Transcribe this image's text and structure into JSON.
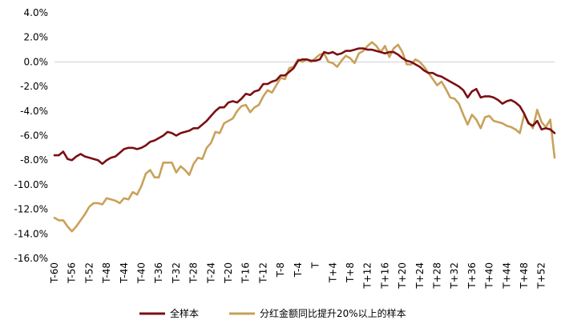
{
  "chart_data": {
    "type": "line",
    "title": "",
    "xlabel": "",
    "ylabel": "",
    "ylim": [
      -16,
      4
    ],
    "y_ticks": [
      4,
      2,
      0,
      -2,
      -4,
      -6,
      -8,
      -10,
      -12,
      -14,
      -16
    ],
    "y_tick_labels": [
      "4.0%",
      "2.0%",
      "0.0%",
      "-2.0%",
      "-4.0%",
      "-6.0%",
      "-8.0%",
      "-10.0%",
      "-12.0%",
      "-14.0%",
      "-16.0%"
    ],
    "x_range": [
      -60,
      55
    ],
    "x_ticks": [
      -60,
      -56,
      -52,
      -48,
      -44,
      -40,
      -36,
      -32,
      -28,
      -24,
      -20,
      -16,
      -12,
      -8,
      -4,
      0,
      4,
      8,
      12,
      16,
      20,
      24,
      28,
      32,
      36,
      40,
      44,
      48,
      52
    ],
    "x_tick_labels": [
      "T-60",
      "T-56",
      "T-52",
      "T-48",
      "T-44",
      "T-40",
      "T-36",
      "T-32",
      "T-28",
      "T-24",
      "T-20",
      "T-16",
      "T-12",
      "T-8",
      "T-4",
      "T",
      "T+4",
      "T+8",
      "T+12",
      "T+16",
      "T+20",
      "T+24",
      "T+28",
      "T+32",
      "T+36",
      "T+40",
      "T+44",
      "T+48",
      "T+52"
    ],
    "grid": false,
    "zero_line": true,
    "legend_position": "bottom",
    "series": [
      {
        "name": "全样本",
        "color": "#7a0f14",
        "x": [
          -60,
          -59,
          -58,
          -57,
          -56,
          -55,
          -54,
          -53,
          -52,
          -51,
          -50,
          -49,
          -48,
          -47,
          -46,
          -45,
          -44,
          -43,
          -42,
          -41,
          -40,
          -39,
          -38,
          -37,
          -36,
          -35,
          -34,
          -33,
          -32,
          -31,
          -30,
          -29,
          -28,
          -27,
          -26,
          -25,
          -24,
          -23,
          -22,
          -21,
          -20,
          -19,
          -18,
          -17,
          -16,
          -15,
          -14,
          -13,
          -12,
          -11,
          -10,
          -9,
          -8,
          -7,
          -6,
          -5,
          -4,
          -3,
          -2,
          -1,
          0,
          1,
          2,
          3,
          4,
          5,
          6,
          7,
          8,
          9,
          10,
          11,
          12,
          13,
          14,
          15,
          16,
          17,
          18,
          19,
          20,
          21,
          22,
          23,
          24,
          25,
          26,
          27,
          28,
          29,
          30,
          31,
          32,
          33,
          34,
          35,
          36,
          37,
          38,
          39,
          40,
          41,
          42,
          43,
          44,
          45,
          46,
          47,
          48,
          49,
          50,
          51,
          52,
          53,
          54,
          55
        ],
        "y": [
          -7.6,
          -7.6,
          -7.3,
          -7.9,
          -8.0,
          -7.7,
          -7.5,
          -7.7,
          -7.8,
          -7.9,
          -8.0,
          -8.3,
          -8.0,
          -7.8,
          -7.7,
          -7.4,
          -7.1,
          -7.0,
          -7.0,
          -7.1,
          -7.0,
          -6.8,
          -6.5,
          -6.4,
          -6.2,
          -6.0,
          -5.7,
          -5.8,
          -6.0,
          -5.8,
          -5.7,
          -5.6,
          -5.4,
          -5.4,
          -5.1,
          -4.8,
          -4.4,
          -4.0,
          -3.7,
          -3.7,
          -3.3,
          -3.2,
          -3.3,
          -3.0,
          -2.6,
          -2.7,
          -2.4,
          -2.3,
          -1.8,
          -1.8,
          -1.6,
          -1.5,
          -1.1,
          -1.1,
          -0.8,
          -0.5,
          0.1,
          0.2,
          0.2,
          0.1,
          0.1,
          0.2,
          0.8,
          0.7,
          0.8,
          0.6,
          0.7,
          0.9,
          0.9,
          1.0,
          1.1,
          1.1,
          1.0,
          1.0,
          0.9,
          0.8,
          0.7,
          0.8,
          0.8,
          0.6,
          0.3,
          0.1,
          0.0,
          -0.2,
          -0.4,
          -0.7,
          -0.9,
          -0.9,
          -1.1,
          -1.2,
          -1.4,
          -1.6,
          -1.8,
          -2.0,
          -2.3,
          -2.9,
          -2.4,
          -2.2,
          -2.9,
          -2.8,
          -2.8,
          -2.9,
          -3.1,
          -3.4,
          -3.2,
          -3.1,
          -3.3,
          -3.6,
          -4.2,
          -5.0,
          -5.2,
          -4.8,
          -5.5,
          -5.4,
          -5.5,
          -5.8
        ]
      },
      {
        "name": "分红金额同比提升20%以上的样本",
        "color": "#c9a15a",
        "x": [
          -60,
          -59,
          -58,
          -57,
          -56,
          -55,
          -54,
          -53,
          -52,
          -51,
          -50,
          -49,
          -48,
          -47,
          -46,
          -45,
          -44,
          -43,
          -42,
          -41,
          -40,
          -39,
          -38,
          -37,
          -36,
          -35,
          -34,
          -33,
          -32,
          -31,
          -30,
          -29,
          -28,
          -27,
          -26,
          -25,
          -24,
          -23,
          -22,
          -21,
          -20,
          -19,
          -18,
          -17,
          -16,
          -15,
          -14,
          -13,
          -12,
          -11,
          -10,
          -9,
          -8,
          -7,
          -6,
          -5,
          -4,
          -3,
          -2,
          -1,
          0,
          1,
          2,
          3,
          4,
          5,
          6,
          7,
          8,
          9,
          10,
          11,
          12,
          13,
          14,
          15,
          16,
          17,
          18,
          19,
          20,
          21,
          22,
          23,
          24,
          25,
          26,
          27,
          28,
          29,
          30,
          31,
          32,
          33,
          34,
          35,
          36,
          37,
          38,
          39,
          40,
          41,
          42,
          43,
          44,
          45,
          46,
          47,
          48,
          49,
          50,
          51,
          52,
          53,
          54,
          55
        ],
        "y": [
          -12.7,
          -12.9,
          -12.9,
          -13.4,
          -13.8,
          -13.4,
          -12.9,
          -12.4,
          -11.8,
          -11.5,
          -11.5,
          -11.6,
          -11.1,
          -11.2,
          -11.3,
          -11.5,
          -11.1,
          -11.2,
          -10.6,
          -10.8,
          -10.1,
          -9.1,
          -8.8,
          -9.4,
          -9.4,
          -8.2,
          -8.2,
          -8.2,
          -9.0,
          -8.5,
          -8.8,
          -9.2,
          -8.3,
          -7.8,
          -7.9,
          -7.0,
          -6.6,
          -5.7,
          -5.8,
          -5.0,
          -4.8,
          -4.6,
          -4.0,
          -3.6,
          -3.5,
          -4.1,
          -3.7,
          -3.5,
          -2.8,
          -2.3,
          -2.5,
          -1.9,
          -1.3,
          -1.4,
          -0.5,
          -0.4,
          0.2,
          0.0,
          0.2,
          0.0,
          0.3,
          0.6,
          0.7,
          0.0,
          -0.1,
          -0.4,
          0.1,
          0.5,
          0.3,
          -0.1,
          0.7,
          0.9,
          1.3,
          1.6,
          1.3,
          0.8,
          1.3,
          0.4,
          1.1,
          1.4,
          0.8,
          -0.2,
          -0.2,
          0.2,
          0.0,
          -0.4,
          -0.9,
          -1.4,
          -1.9,
          -1.6,
          -2.2,
          -2.9,
          -3.0,
          -3.4,
          -4.3,
          -5.1,
          -4.3,
          -4.7,
          -5.4,
          -4.5,
          -4.4,
          -4.8,
          -4.9,
          -5.0,
          -5.2,
          -5.3,
          -5.5,
          -5.8,
          -4.3,
          -4.9,
          -5.4,
          -3.9,
          -4.9,
          -5.3,
          -4.7,
          -7.8
        ]
      }
    ]
  }
}
